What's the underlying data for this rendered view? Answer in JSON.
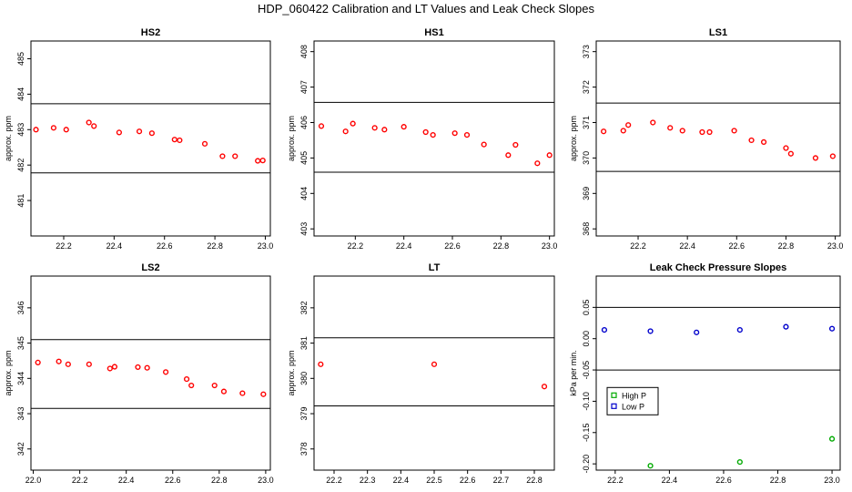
{
  "page": {
    "title": "HDP_060422  Calibration and LT Values and Leak Check Slopes"
  },
  "chart_data": [
    {
      "type": "scatter",
      "title": "HS2",
      "ylabel": "approx. ppm",
      "xlim": [
        22.07,
        23.02
      ],
      "ylim": [
        480.0,
        485.5
      ],
      "xticks": [
        22.2,
        22.4,
        22.6,
        22.8,
        23.0
      ],
      "xtick_labels": [
        "22.2",
        "22.4",
        "22.6",
        "22.8",
        "23.0"
      ],
      "yticks": [
        481,
        482,
        483,
        484,
        485
      ],
      "ytick_labels": [
        "481",
        "482",
        "483",
        "484",
        "485"
      ],
      "hlines": [
        483.73,
        481.78
      ],
      "series": [
        {
          "name": "HS2",
          "color": "#ff0000",
          "x": [
            22.09,
            22.16,
            22.21,
            22.3,
            22.32,
            22.42,
            22.5,
            22.55,
            22.64,
            22.66,
            22.76,
            22.83,
            22.88,
            22.97,
            22.99
          ],
          "y": [
            483.0,
            483.05,
            483.0,
            483.2,
            483.1,
            482.92,
            482.95,
            482.9,
            482.72,
            482.7,
            482.6,
            482.25,
            482.25,
            482.12,
            482.13
          ]
        }
      ]
    },
    {
      "type": "scatter",
      "title": "HS1",
      "ylabel": "approx. ppm",
      "xlim": [
        22.03,
        23.02
      ],
      "ylim": [
        402.8,
        408.3
      ],
      "xticks": [
        22.2,
        22.4,
        22.6,
        22.8,
        23.0
      ],
      "xtick_labels": [
        "22.2",
        "22.4",
        "22.6",
        "22.8",
        "23.0"
      ],
      "yticks": [
        403,
        404,
        405,
        406,
        407,
        408
      ],
      "ytick_labels": [
        "403",
        "404",
        "405",
        "406",
        "407",
        "408"
      ],
      "hlines": [
        406.57,
        404.6
      ],
      "series": [
        {
          "name": "HS1",
          "color": "#ff0000",
          "x": [
            22.06,
            22.16,
            22.19,
            22.28,
            22.32,
            22.4,
            22.49,
            22.52,
            22.61,
            22.66,
            22.73,
            22.83,
            22.86,
            22.95,
            23.0
          ],
          "y": [
            405.9,
            405.75,
            405.97,
            405.85,
            405.8,
            405.88,
            405.73,
            405.65,
            405.7,
            405.65,
            405.38,
            405.08,
            405.37,
            404.85,
            405.08
          ]
        }
      ]
    },
    {
      "type": "scatter",
      "title": "LS1",
      "ylabel": "approx. ppm",
      "xlim": [
        22.03,
        23.02
      ],
      "ylim": [
        367.8,
        373.3
      ],
      "xticks": [
        22.2,
        22.4,
        22.6,
        22.8,
        23.0
      ],
      "xtick_labels": [
        "22.2",
        "22.4",
        "22.6",
        "22.8",
        "23.0"
      ],
      "yticks": [
        368,
        369,
        370,
        371,
        372,
        373
      ],
      "ytick_labels": [
        "368",
        "369",
        "370",
        "371",
        "372",
        "373"
      ],
      "hlines": [
        371.55,
        369.62
      ],
      "series": [
        {
          "name": "LS1",
          "color": "#ff0000",
          "x": [
            22.06,
            22.14,
            22.16,
            22.26,
            22.33,
            22.38,
            22.46,
            22.49,
            22.59,
            22.66,
            22.71,
            22.8,
            22.82,
            22.92,
            22.99
          ],
          "y": [
            370.75,
            370.77,
            370.93,
            371.0,
            370.85,
            370.77,
            370.73,
            370.73,
            370.77,
            370.5,
            370.45,
            370.28,
            370.12,
            370.0,
            370.05
          ]
        }
      ]
    },
    {
      "type": "scatter",
      "title": "LS2",
      "ylabel": "approx. ppm",
      "xlim": [
        21.99,
        23.02
      ],
      "ylim": [
        341.4,
        346.9
      ],
      "xticks": [
        22.0,
        22.2,
        22.4,
        22.6,
        22.8,
        23.0
      ],
      "xtick_labels": [
        "22.0",
        "22.2",
        "22.4",
        "22.6",
        "22.8",
        "23.0"
      ],
      "yticks": [
        342,
        343,
        344,
        345,
        346
      ],
      "ytick_labels": [
        "342",
        "343",
        "344",
        "345",
        "346"
      ],
      "hlines": [
        345.1,
        343.15
      ],
      "series": [
        {
          "name": "LS2",
          "color": "#ff0000",
          "x": [
            22.02,
            22.11,
            22.15,
            22.24,
            22.33,
            22.35,
            22.45,
            22.49,
            22.57,
            22.66,
            22.68,
            22.78,
            22.82,
            22.9,
            22.99
          ],
          "y": [
            344.45,
            344.48,
            344.4,
            344.4,
            344.28,
            344.33,
            344.32,
            344.3,
            344.18,
            343.98,
            343.8,
            343.8,
            343.63,
            343.58,
            343.55
          ]
        }
      ]
    },
    {
      "type": "scatter",
      "title": "LT",
      "ylabel": "approx. ppm",
      "xlim": [
        22.14,
        22.86
      ],
      "ylim": [
        377.4,
        382.9
      ],
      "xticks": [
        22.2,
        22.3,
        22.4,
        22.5,
        22.6,
        22.7,
        22.8
      ],
      "xtick_labels": [
        "22.2",
        "22.3",
        "22.4",
        "22.5",
        "22.6",
        "22.7",
        "22.8"
      ],
      "yticks": [
        378,
        379,
        380,
        381,
        382
      ],
      "ytick_labels": [
        "378",
        "379",
        "380",
        "381",
        "382"
      ],
      "hlines": [
        381.15,
        379.22
      ],
      "series": [
        {
          "name": "LT",
          "color": "#ff0000",
          "x": [
            22.16,
            22.5,
            22.83
          ],
          "y": [
            380.4,
            380.4,
            379.77
          ]
        }
      ]
    },
    {
      "type": "scatter",
      "title": "Leak Check Pressure Slopes",
      "ylabel": "kPa per min.",
      "xlim": [
        22.13,
        23.03
      ],
      "ylim": [
        -0.21,
        0.1
      ],
      "xticks": [
        22.2,
        22.4,
        22.6,
        22.8,
        23.0
      ],
      "xtick_labels": [
        "22.2",
        "22.4",
        "22.6",
        "22.8",
        "23.0"
      ],
      "yticks": [
        -0.2,
        -0.15,
        -0.1,
        -0.05,
        0.0,
        0.05
      ],
      "ytick_labels": [
        "-0.20",
        "-0.15",
        "-0.10",
        "-0.05",
        "0.00",
        "0.05"
      ],
      "hlines": [
        0.05,
        -0.05
      ],
      "legend": {
        "position": "middle-left",
        "entries": [
          "High P",
          "Low P"
        ]
      },
      "series": [
        {
          "name": "High P",
          "color": "#00aa00",
          "x": [
            22.33,
            22.66,
            23.0
          ],
          "y": [
            -0.203,
            -0.197,
            -0.16
          ]
        },
        {
          "name": "Low P",
          "color": "#0000cc",
          "x": [
            22.16,
            22.33,
            22.5,
            22.66,
            22.83,
            23.0
          ],
          "y": [
            0.014,
            0.012,
            0.01,
            0.014,
            0.019,
            0.016
          ]
        }
      ]
    }
  ]
}
